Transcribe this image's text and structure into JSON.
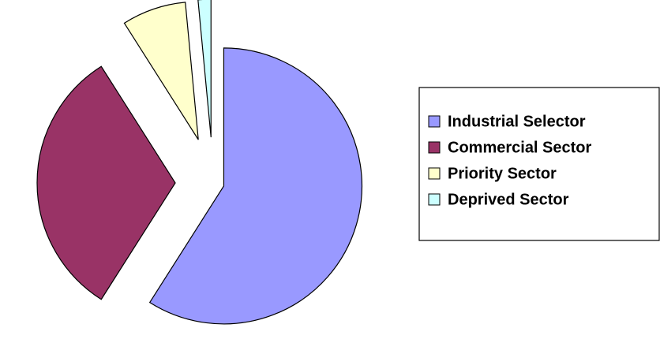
{
  "chart_data": {
    "type": "pie",
    "categories": [
      "Industrial Selector",
      "Commercial Sector",
      "Priority Sector",
      "Deprived Sector"
    ],
    "values": [
      59,
      32,
      7.5,
      1.5
    ],
    "colors": [
      "#9999ff",
      "#993366",
      "#ffffcc",
      "#ccffff"
    ],
    "legend": "right"
  }
}
